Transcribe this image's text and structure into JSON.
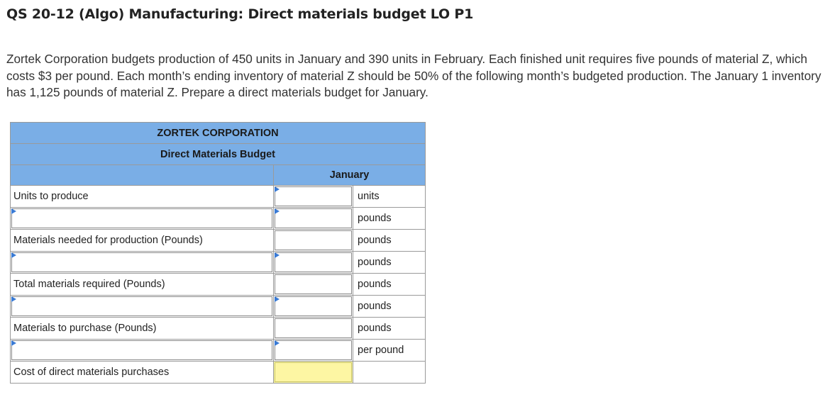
{
  "title": "QS 20-12 (Algo) Manufacturing: Direct materials budget LO P1",
  "question": "Zortek Corporation budgets production of 450 units in January and 390 units in February. Each finished unit requires five pounds of material Z, which costs $3 per pound. Each month’s ending inventory of material Z should be 50% of the following month’s budgeted production. The January 1 inventory has 1,125 pounds of material Z. Prepare a direct materials budget for January.",
  "table": {
    "company": "ZORTEK CORPORATION",
    "statement": "Direct Materials Budget",
    "column_header": "January",
    "rows": [
      {
        "label": "Units to produce",
        "label_editable": false,
        "unit": "units"
      },
      {
        "label": "",
        "label_editable": true,
        "unit": "pounds"
      },
      {
        "label": "Materials needed for production (Pounds)",
        "label_editable": false,
        "unit": "pounds"
      },
      {
        "label": "",
        "label_editable": true,
        "unit": "pounds"
      },
      {
        "label": "Total materials required (Pounds)",
        "label_editable": false,
        "unit": "pounds"
      },
      {
        "label": "",
        "label_editable": true,
        "unit": "pounds"
      },
      {
        "label": "Materials to purchase (Pounds)",
        "label_editable": false,
        "unit": "pounds"
      },
      {
        "label": "",
        "label_editable": true,
        "unit": "per pound"
      },
      {
        "label": "Cost of direct materials purchases",
        "label_editable": false,
        "unit": ""
      }
    ]
  },
  "colors": {
    "header_bg": "#7aaee6",
    "flag": "#3a7bd5",
    "result_bg": "#fdf6a3"
  }
}
